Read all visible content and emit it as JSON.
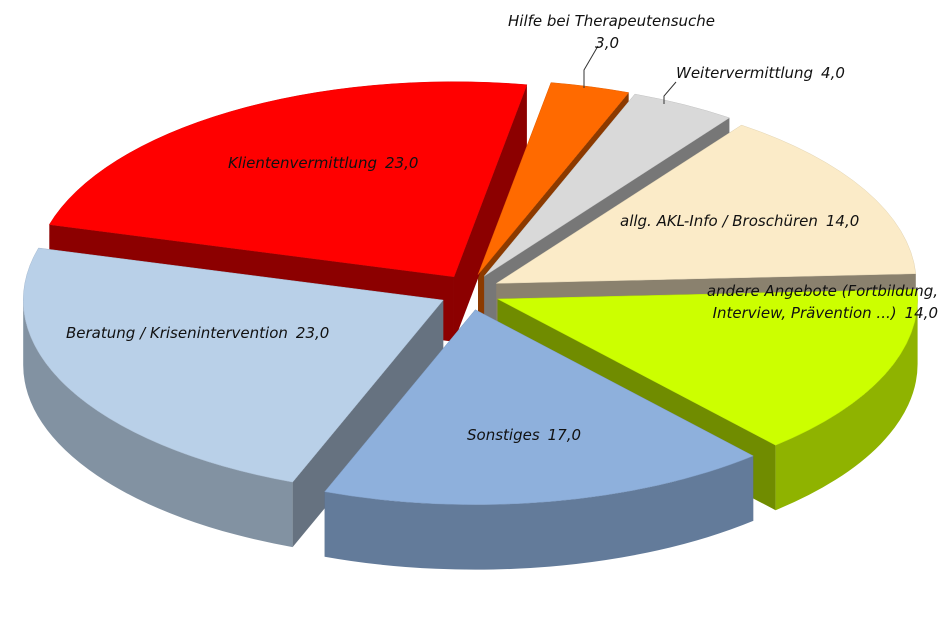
{
  "chart_data": {
    "type": "pie3d",
    "categories": [
      "Hilfe bei Therapeutensuche",
      "Weitervermittlung",
      "allg. AKL-Info / Broschüren",
      "andere Angebote (Fortbildung, Interview, Prävention ...)",
      "Sonstiges",
      "Beratung / Krisenintervention",
      "Klientenvermittlung"
    ],
    "values": [
      3,
      4,
      14,
      14,
      17,
      23,
      23
    ],
    "value_labels": [
      "3,0",
      "4,0",
      "14,0",
      "14,0",
      "17,0",
      "23,0",
      "23,0"
    ],
    "colors": [
      "#ff6a00",
      "#d9d9d9",
      "#fbebc8",
      "#ccff00",
      "#8eb0dc",
      "#b9d0e8",
      "#ff0000"
    ]
  }
}
